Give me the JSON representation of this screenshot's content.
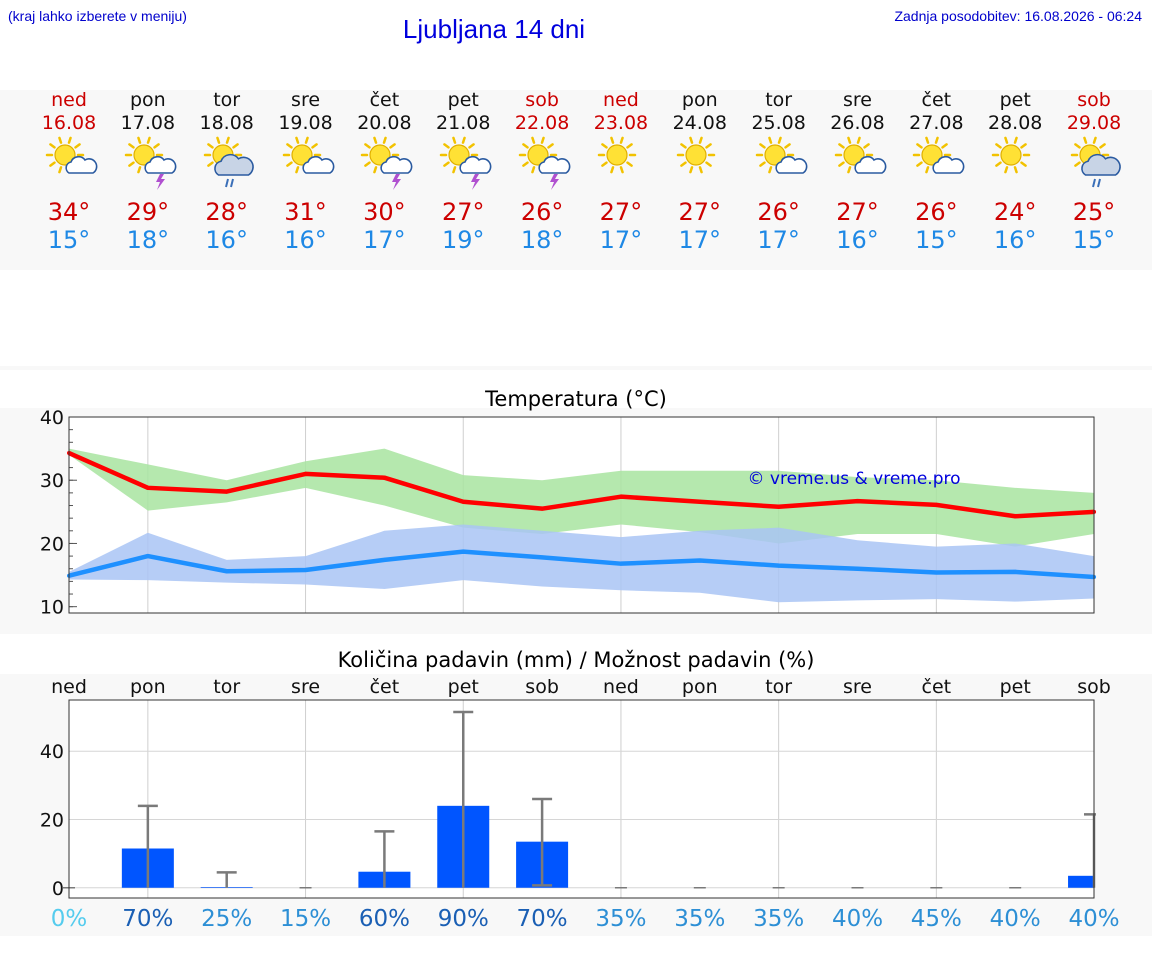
{
  "header": {
    "menu_hint": "(kraj lahko izberete v meniju)",
    "title": "Ljubljana 14 dni",
    "last_update": "Zadnja posodobitev: 16.08.2026 - 06:24"
  },
  "colors": {
    "weekend": "#cc0000",
    "weekday": "#111111",
    "max_temp": "#cc0000",
    "min_temp": "#1e88e5",
    "max_band": "#a8e4a0",
    "min_band": "#a9c4f5",
    "max_line": "#ff0000",
    "min_line": "#1e90ff",
    "precip_bar": "#0055ff"
  },
  "days": [
    {
      "name": "ned",
      "date": "16.08",
      "weekend": true,
      "icon": "sun-cloud-icon",
      "max": "34°",
      "min": "15°"
    },
    {
      "name": "pon",
      "date": "17.08",
      "weekend": false,
      "icon": "sun-cloud-storm-icon",
      "max": "29°",
      "min": "18°"
    },
    {
      "name": "tor",
      "date": "18.08",
      "weekend": false,
      "icon": "sun-cloud-rain-icon",
      "max": "28°",
      "min": "16°"
    },
    {
      "name": "sre",
      "date": "19.08",
      "weekend": false,
      "icon": "sun-cloud-icon",
      "max": "31°",
      "min": "16°"
    },
    {
      "name": "čet",
      "date": "20.08",
      "weekend": false,
      "icon": "sun-cloud-storm-icon",
      "max": "30°",
      "min": "17°"
    },
    {
      "name": "pet",
      "date": "21.08",
      "weekend": false,
      "icon": "sun-cloud-storm-icon",
      "max": "27°",
      "min": "19°"
    },
    {
      "name": "sob",
      "date": "22.08",
      "weekend": true,
      "icon": "sun-cloud-storm-icon",
      "max": "26°",
      "min": "18°"
    },
    {
      "name": "ned",
      "date": "23.08",
      "weekend": true,
      "icon": "sun-icon",
      "max": "27°",
      "min": "17°"
    },
    {
      "name": "pon",
      "date": "24.08",
      "weekend": false,
      "icon": "sun-icon",
      "max": "27°",
      "min": "17°"
    },
    {
      "name": "tor",
      "date": "25.08",
      "weekend": false,
      "icon": "sun-cloud-icon",
      "max": "26°",
      "min": "17°"
    },
    {
      "name": "sre",
      "date": "26.08",
      "weekend": false,
      "icon": "sun-cloud-icon",
      "max": "27°",
      "min": "16°"
    },
    {
      "name": "čet",
      "date": "27.08",
      "weekend": false,
      "icon": "sun-cloud-icon",
      "max": "26°",
      "min": "15°"
    },
    {
      "name": "pet",
      "date": "28.08",
      "weekend": false,
      "icon": "sun-icon",
      "max": "24°",
      "min": "16°"
    },
    {
      "name": "sob",
      "date": "29.08",
      "weekend": true,
      "icon": "sun-cloud-rain-icon",
      "max": "25°",
      "min": "15°"
    }
  ],
  "chart_data": [
    {
      "type": "line",
      "title": "Temperatura (°C)",
      "watermark": "© vreme.us & vreme.pro",
      "ylim": [
        9,
        40
      ],
      "yticks": [
        10,
        20,
        30,
        40
      ],
      "grid": true,
      "x": [
        0,
        1,
        2,
        3,
        4,
        5,
        6,
        7,
        8,
        9,
        10,
        11,
        12,
        13
      ],
      "series": [
        {
          "values": [
            34.3,
            28.8,
            28.2,
            31.0,
            30.4,
            26.6,
            25.5,
            27.4,
            26.6,
            25.8,
            26.7,
            26.1,
            24.3,
            25.0
          ],
          "band_upper": [
            35.0,
            32.5,
            30.0,
            33.0,
            35.0,
            30.8,
            30.0,
            31.5,
            31.5,
            31.5,
            30.5,
            30.0,
            28.8,
            28.0
          ],
          "band_lower": [
            34.0,
            25.2,
            26.5,
            28.8,
            26.0,
            22.5,
            21.5,
            23.0,
            21.8,
            20.0,
            21.5,
            21.5,
            19.5,
            21.5
          ]
        },
        {
          "values": [
            14.9,
            18.0,
            15.6,
            15.8,
            17.4,
            18.7,
            17.8,
            16.8,
            17.3,
            16.5,
            16.0,
            15.4,
            15.5,
            14.7
          ],
          "band_upper": [
            15.5,
            21.7,
            17.4,
            18.0,
            22.0,
            23.0,
            22.0,
            21.0,
            22.0,
            22.5,
            20.5,
            19.5,
            20.0,
            18.0
          ],
          "band_lower": [
            14.3,
            14.2,
            13.8,
            13.5,
            12.8,
            14.2,
            13.2,
            12.6,
            12.2,
            10.7,
            11.0,
            11.2,
            10.8,
            11.3
          ]
        }
      ]
    },
    {
      "type": "bar",
      "title": "Količina padavin (mm) / Možnost padavin (%)",
      "ylim": [
        -3,
        55
      ],
      "yticks": [
        0,
        20,
        40
      ],
      "grid": true,
      "categories": [
        "ned",
        "pon",
        "tor",
        "sre",
        "čet",
        "pet",
        "sob",
        "ned",
        "pon",
        "tor",
        "sre",
        "čet",
        "pet",
        "sob"
      ],
      "values": [
        0,
        11.5,
        0.2,
        0,
        4.7,
        24,
        13.5,
        0,
        0,
        0,
        0,
        0,
        0,
        3.5
      ],
      "error_high": [
        0,
        24,
        4.5,
        0,
        16.5,
        51.5,
        26,
        0,
        0,
        0,
        0,
        0,
        0,
        21.5
      ],
      "error_low": [
        0,
        0,
        0,
        0,
        0,
        0,
        0.7,
        0,
        0,
        0,
        0,
        0,
        0,
        0
      ],
      "chance": [
        "0%",
        "70%",
        "25%",
        "15%",
        "60%",
        "90%",
        "70%",
        "35%",
        "35%",
        "35%",
        "40%",
        "45%",
        "40%",
        "40%"
      ],
      "chance_colors": [
        "#55ccee",
        "#1a5fb4",
        "#2d8fd5",
        "#2d8fd5",
        "#1a5fb4",
        "#1a5fb4",
        "#1a5fb4",
        "#2d8fd5",
        "#2d8fd5",
        "#2d8fd5",
        "#2d8fd5",
        "#2d8fd5",
        "#2d8fd5",
        "#2d8fd5"
      ]
    }
  ]
}
